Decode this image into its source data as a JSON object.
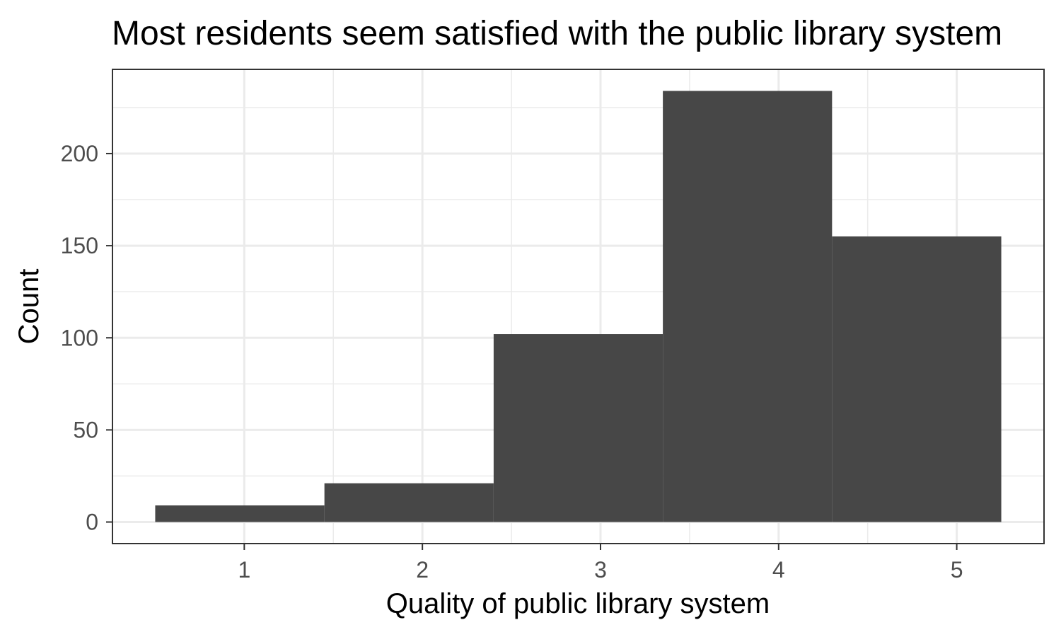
{
  "chart_data": {
    "type": "bar",
    "title": "Most residents seem satisfied with the public library system",
    "xlabel": "Quality of public library system",
    "ylabel": "Count",
    "x_ticks": [
      "1",
      "2",
      "3",
      "4",
      "5"
    ],
    "y_ticks": [
      "0",
      "50",
      "100",
      "150",
      "200"
    ],
    "bins": [
      {
        "x_start": 0.5,
        "x_end": 1.45,
        "count": 9
      },
      {
        "x_start": 1.45,
        "x_end": 2.4,
        "count": 21
      },
      {
        "x_start": 2.4,
        "x_end": 3.35,
        "count": 102
      },
      {
        "x_start": 3.35,
        "x_end": 4.3,
        "count": 234
      },
      {
        "x_start": 4.3,
        "x_end": 5.25,
        "count": 155
      }
    ],
    "xlim": [
      0.26,
      5.49
    ],
    "ylim": [
      -11.7,
      245.7
    ],
    "grid": true,
    "colors": {
      "bar": "#474747",
      "grid": "#ebebeb",
      "panel_border": "#333333",
      "tick_label": "#4d4d4d"
    }
  }
}
